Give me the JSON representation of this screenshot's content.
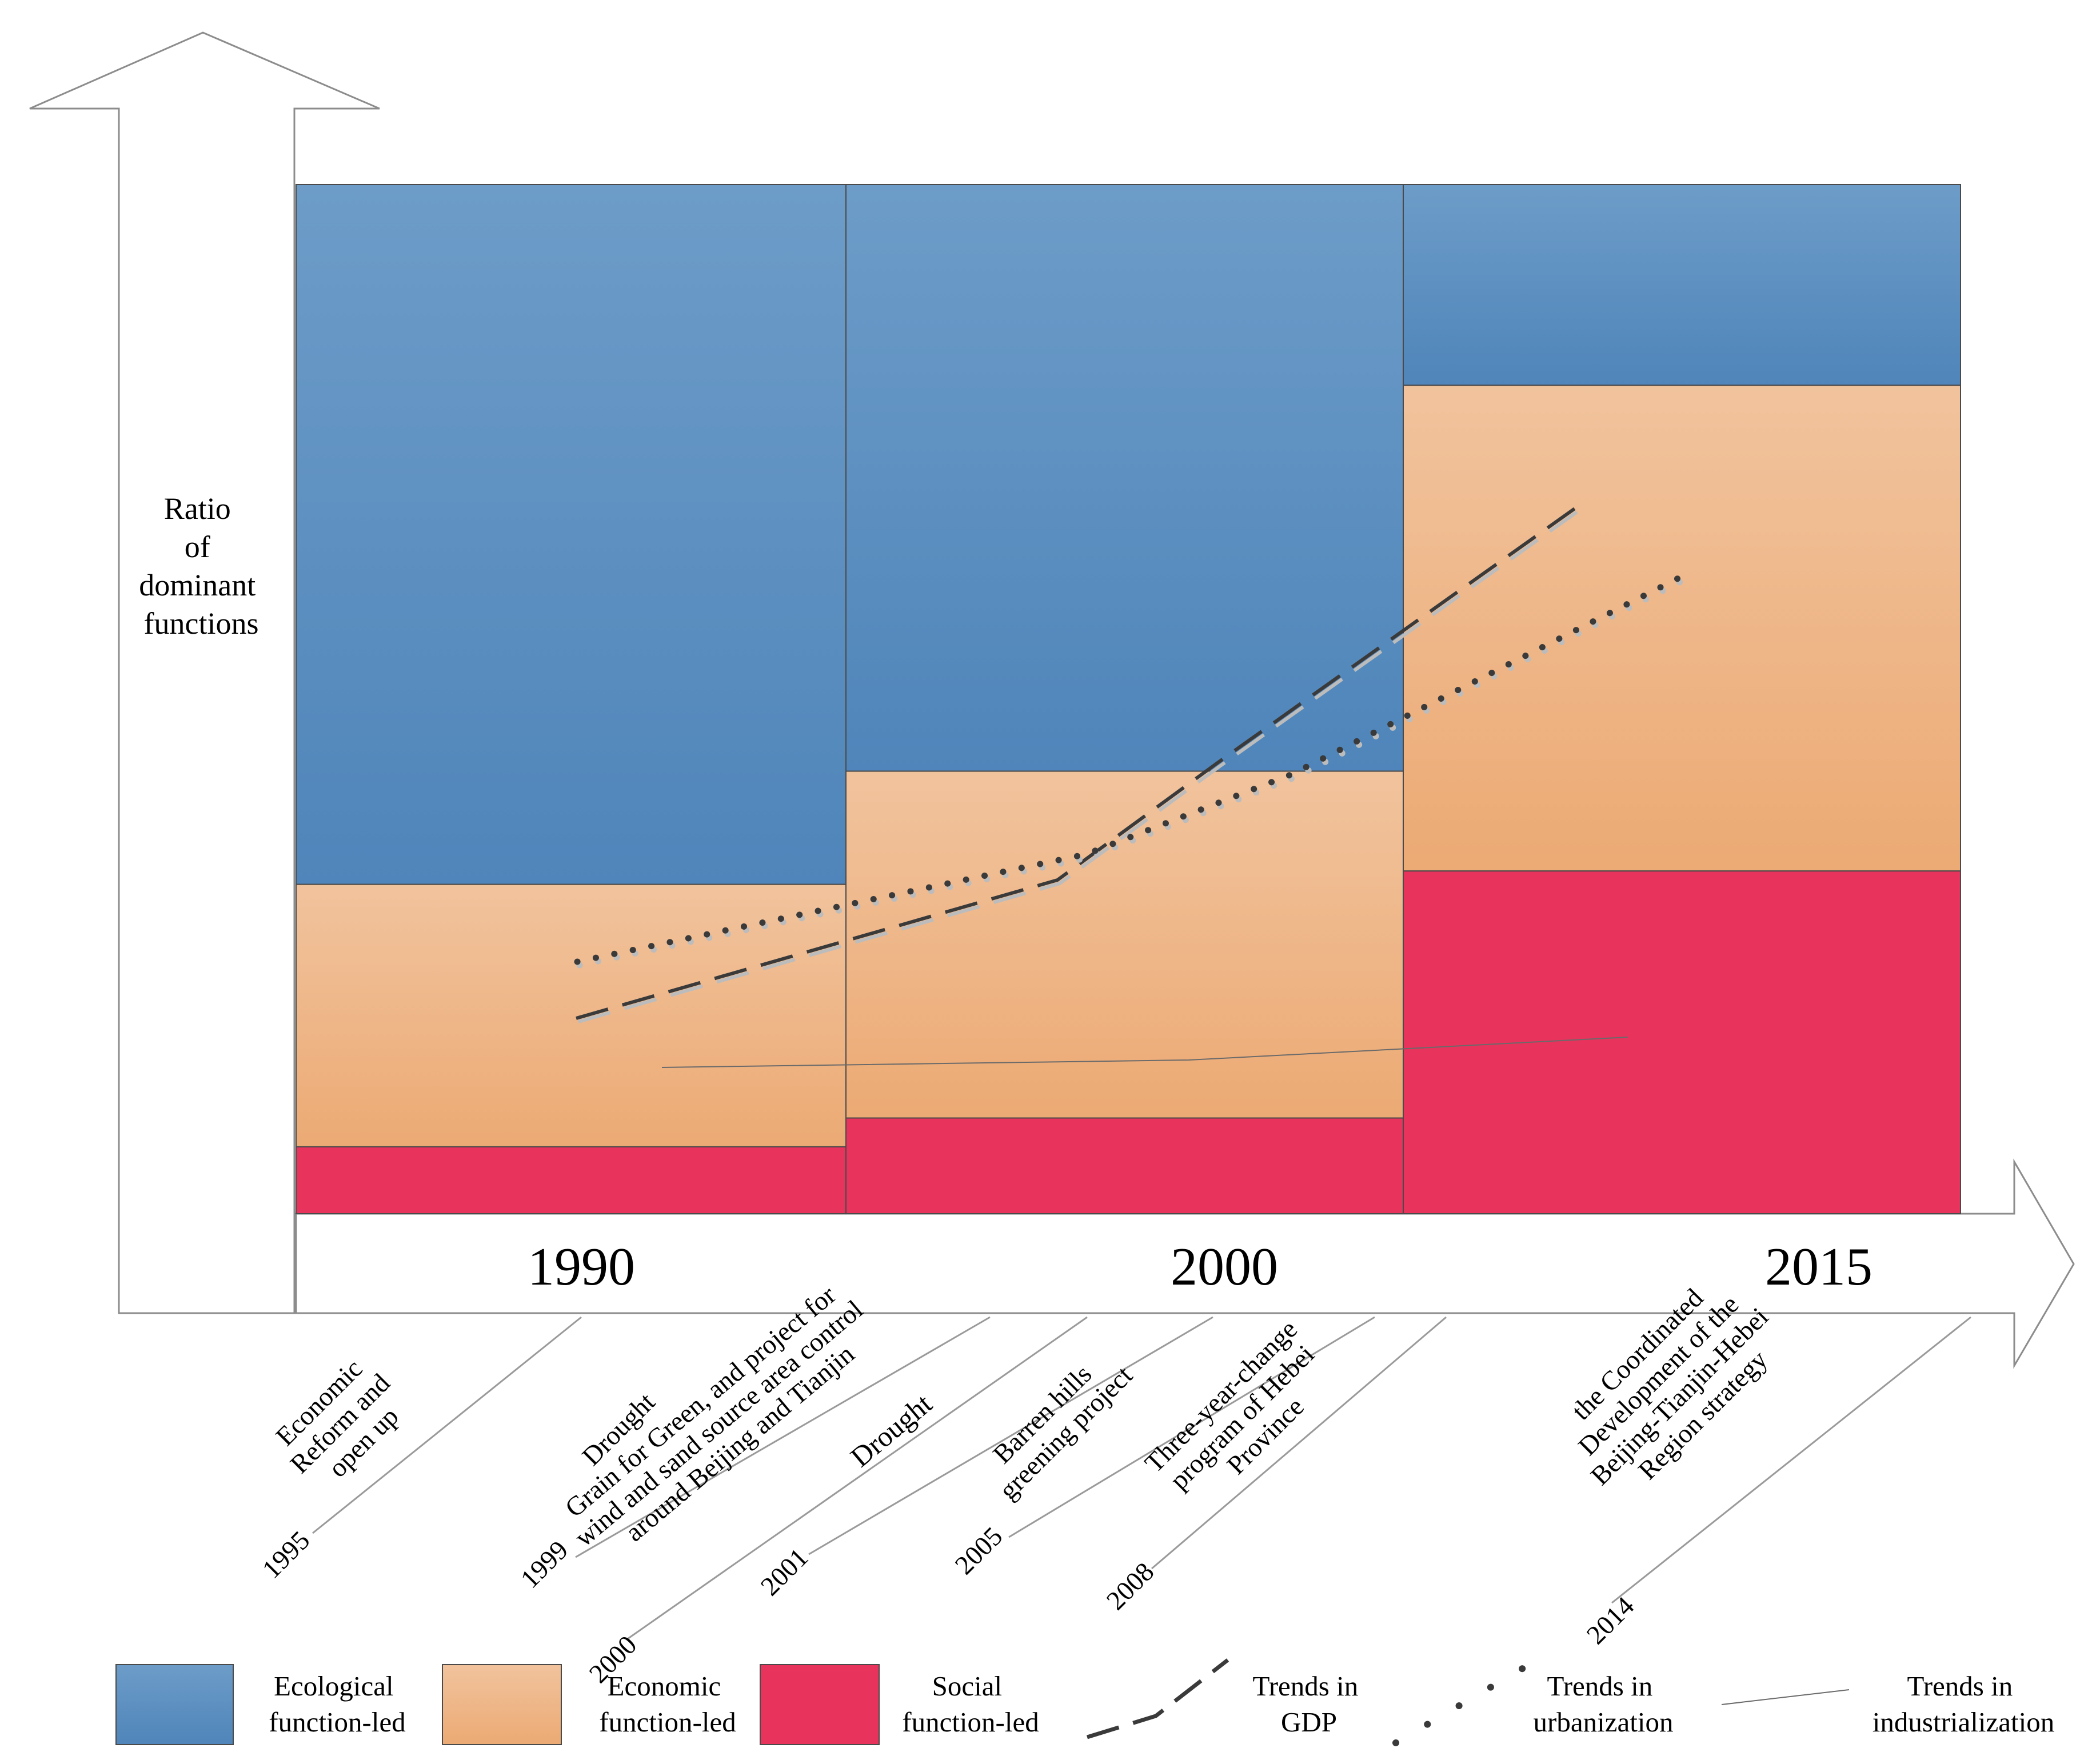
{
  "y_axis_label": [
    "Ratio",
    "of",
    "dominant",
    "functions"
  ],
  "periods": [
    {
      "year": "1990",
      "ecological": 68,
      "economic": 25.5,
      "social": 6.5
    },
    {
      "year": "2000",
      "ecological": 57,
      "economic": 33.7,
      "social": 9.3
    },
    {
      "year": "2015",
      "ecological": 19.5,
      "economic": 47.2,
      "social": 33.3
    }
  ],
  "events": [
    {
      "year": "1995",
      "lines": [
        "Economic",
        "Reform and",
        "open up"
      ]
    },
    {
      "year": "1999",
      "lines": [
        "Drought"
      ]
    },
    {
      "year": "2000",
      "lines": [
        "Grain for Green, and project for",
        "wind and sand source area control",
        "around Beijing and Tianjin"
      ]
    },
    {
      "year": "2001",
      "lines": [
        "Drought"
      ]
    },
    {
      "year": "2005",
      "lines": [
        "Barren hills",
        "greening project"
      ]
    },
    {
      "year": "2008",
      "lines": [
        "Three-year-change",
        "program of Hebei",
        "Province"
      ]
    },
    {
      "year": "2014",
      "lines": [
        "the Coordinated",
        "Development of the",
        "Beijing-Tianjin-Hebei",
        "Region strategy"
      ]
    }
  ],
  "trends": {
    "gdp": [
      [
        1992,
        75
      ],
      [
        1998,
        52
      ],
      [
        2005,
        8
      ],
      [
        2011,
        -52
      ]
    ],
    "urbanization": [
      [
        1992,
        67
      ],
      [
        2003,
        55
      ],
      [
        2008,
        10
      ],
      [
        2016,
        -37
      ]
    ],
    "industrialization": [
      [
        1993,
        58
      ],
      [
        2004,
        55
      ],
      [
        2013,
        50
      ]
    ]
  },
  "legend": [
    {
      "key": "ecological",
      "lines": [
        "Ecological",
        "function-led"
      ]
    },
    {
      "key": "economic",
      "lines": [
        "Economic",
        "function-led"
      ]
    },
    {
      "key": "social",
      "lines": [
        "Social",
        "function-led"
      ]
    },
    {
      "key": "gdp",
      "lines": [
        "Trends in",
        "GDP"
      ]
    },
    {
      "key": "urbanization",
      "lines": [
        "Trends in",
        "urbanization"
      ]
    },
    {
      "key": "industrialization",
      "lines": [
        "Trends in",
        "industrialization"
      ]
    }
  ],
  "colors": {
    "ecological_top": "#6d9cc8",
    "ecological_bottom": "#4f85ba",
    "economic_top": "#f1c39d",
    "economic_bottom": "#ecaa74",
    "social": "#e8335c"
  }
}
